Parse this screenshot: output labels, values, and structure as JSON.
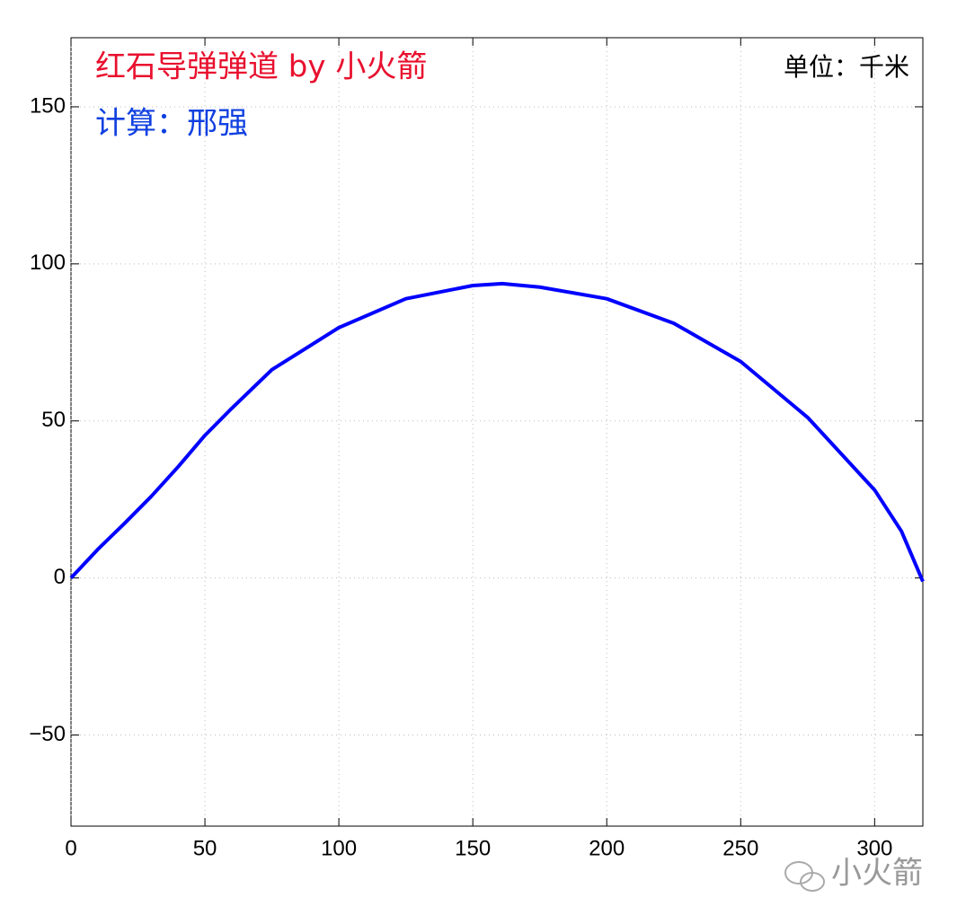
{
  "chart_data": {
    "type": "line",
    "title": "红石导弹弹道 by 小火箭",
    "subtitle": "计算：邢强",
    "unit_label": "单位：千米",
    "watermark": "小火箭",
    "x": [
      0,
      10,
      20,
      30,
      40,
      50,
      60,
      75,
      100,
      125,
      150,
      161,
      175,
      200,
      225,
      250,
      275,
      300,
      310,
      318
    ],
    "series": [
      {
        "color": "#0000ff",
        "values": [
          0,
          9.1,
          17.4,
          26,
          35.4,
          45.4,
          54,
          66.3,
          79.7,
          88.9,
          93.1,
          93.7,
          92.6,
          88.9,
          81.1,
          68.9,
          51.1,
          28,
          14.9,
          -1.1
        ]
      }
    ],
    "xlim": [
      0,
      318
    ],
    "ylim": [
      -79,
      172
    ],
    "xticks": [
      0,
      50,
      100,
      150,
      200,
      250,
      300
    ],
    "yticks": [
      {
        "value": -50,
        "label": "−50"
      },
      0,
      50,
      100,
      150
    ],
    "grid": true,
    "title_color": "#e8102e",
    "subtitle_color": "#1040e0",
    "unit_color": "#000000",
    "watermark_color": "#999999"
  }
}
